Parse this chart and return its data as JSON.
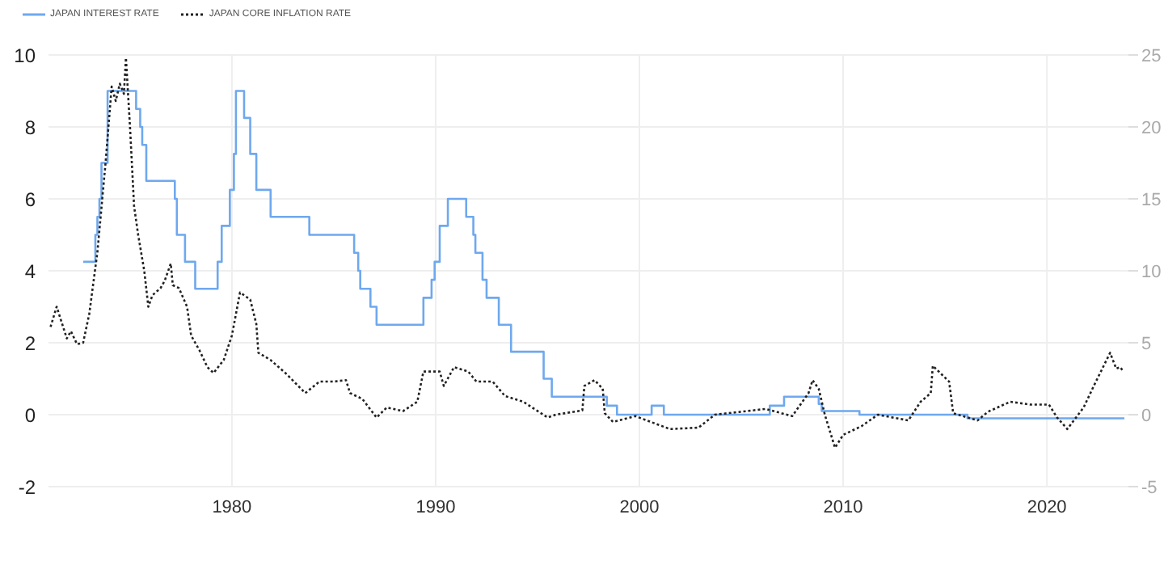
{
  "chart_data": {
    "type": "line",
    "legend": "top left",
    "grid": true,
    "marker": "none",
    "xlim": [
      1971,
      2024
    ],
    "xticks": [
      1980,
      1990,
      2000,
      2010,
      2020
    ],
    "ylim": [
      -2,
      10
    ],
    "yticks": [
      -2,
      0,
      2,
      4,
      6,
      8,
      10
    ],
    "y2lim": [
      -5,
      25
    ],
    "y2ticks": [
      -5,
      0,
      5,
      10,
      15,
      20,
      25
    ],
    "series": [
      {
        "name": "JAPAN INTEREST RATE",
        "type": "step",
        "color": "#6fa8ee",
        "line_style": "solid",
        "x": [
          1972.7,
          1973.3,
          1973.4,
          1973.5,
          1973.6,
          1973.9,
          1975.3,
          1975.5,
          1975.6,
          1975.8,
          1977.2,
          1977.3,
          1977.7,
          1978.2,
          1979.3,
          1979.5,
          1979.9,
          1980.1,
          1980.2,
          1980.6,
          1980.9,
          1981.2,
          1981.9,
          1983.8,
          1986.0,
          1986.2,
          1986.3,
          1986.8,
          1987.1,
          1989.4,
          1989.8,
          1989.95,
          1990.2,
          1990.6,
          1991.5,
          1991.85,
          1991.95,
          1992.3,
          1992.5,
          1993.1,
          1993.7,
          1995.3,
          1995.7,
          1998.4,
          1998.9,
          2000.6,
          2001.2,
          2006.4,
          2007.1,
          2008.8,
          2008.95,
          2010.8,
          2016.1,
          2023.8
        ],
        "values": [
          4.25,
          5,
          5.5,
          6,
          7,
          9,
          8.5,
          8,
          7.5,
          6.5,
          6,
          5,
          4.25,
          3.5,
          4.25,
          5.25,
          6.25,
          7.25,
          9,
          8.25,
          7.25,
          6.25,
          5.5,
          5,
          4.5,
          4,
          3.5,
          3,
          2.5,
          3.25,
          3.75,
          4.25,
          5.25,
          6,
          5.5,
          5,
          4.5,
          3.75,
          3.25,
          2.5,
          1.75,
          1,
          0.5,
          0.25,
          0,
          0.25,
          0,
          0.25,
          0.5,
          0.3,
          0.1,
          0,
          -0.1,
          -0.1
        ]
      },
      {
        "name": "JAPAN CORE INFLATION RATE",
        "axis": "y2",
        "color": "#222222",
        "line_style": "dotted",
        "x": [
          1971.1,
          1971.4,
          1971.9,
          1972.1,
          1972.4,
          1972.7,
          1973.0,
          1973.4,
          1973.8,
          1974.1,
          1974.3,
          1974.5,
          1974.7,
          1974.8,
          1975.0,
          1975.2,
          1975.4,
          1975.7,
          1975.9,
          1976.1,
          1976.5,
          1976.7,
          1977.0,
          1977.1,
          1977.4,
          1977.8,
          1978.0,
          1978.4,
          1978.8,
          1979.1,
          1979.6,
          1980.0,
          1980.4,
          1980.9,
          1981.2,
          1981.3,
          1981.9,
          1982.7,
          1983.6,
          1984.3,
          1985.0,
          1985.6,
          1985.8,
          1986.4,
          1987.1,
          1987.6,
          1988.4,
          1989.1,
          1989.4,
          1990.2,
          1990.4,
          1990.9,
          1991.6,
          1992.0,
          1992.8,
          1993.4,
          1994.3,
          1995.5,
          1995.9,
          1997.2,
          1997.3,
          1997.8,
          1998.2,
          1998.3,
          1998.7,
          1999.8,
          2001.5,
          2002.9,
          2003.7,
          2006.2,
          2007.5,
          2008.3,
          2008.5,
          2008.8,
          2009.1,
          2009.6,
          2010.0,
          2010.9,
          2011.7,
          2013.2,
          2013.8,
          2014.3,
          2014.4,
          2015.2,
          2015.4,
          2016.6,
          2017.1,
          2018.2,
          2019.2,
          2020.1,
          2020.5,
          2021.0,
          2021.8,
          2022.3,
          2023.1,
          2023.4,
          2023.6,
          2023.7
        ],
        "values": [
          6.1,
          7.5,
          5.3,
          5.8,
          4.9,
          5,
          7,
          11.3,
          17.5,
          22.8,
          21.8,
          23,
          22.3,
          24.8,
          20,
          14.5,
          12.5,
          10,
          7.5,
          8.3,
          8.8,
          9.3,
          10.5,
          9,
          8.8,
          7.5,
          5.5,
          4.5,
          3.3,
          2.9,
          3.8,
          5.5,
          8.5,
          8,
          6.3,
          4.3,
          3.8,
          2.8,
          1.5,
          2.3,
          2.3,
          2.4,
          1.5,
          1.1,
          -0.2,
          0.5,
          0.25,
          0.9,
          3,
          3,
          2,
          3.3,
          3,
          2.3,
          2.3,
          1.3,
          0.9,
          -0.2,
          0,
          0.3,
          2,
          2.4,
          1.8,
          0.1,
          -0.5,
          -0.1,
          -1,
          -0.9,
          0,
          0.4,
          -0.1,
          1.5,
          2.4,
          1.8,
          0,
          -2.3,
          -1.4,
          -0.8,
          0,
          -0.4,
          0.9,
          1.5,
          3.4,
          2.3,
          0.1,
          -0.4,
          0.2,
          0.9,
          0.7,
          0.7,
          -0.2,
          -1,
          0.5,
          2,
          4.3,
          3.2,
          3.3,
          3.1
        ]
      }
    ]
  }
}
